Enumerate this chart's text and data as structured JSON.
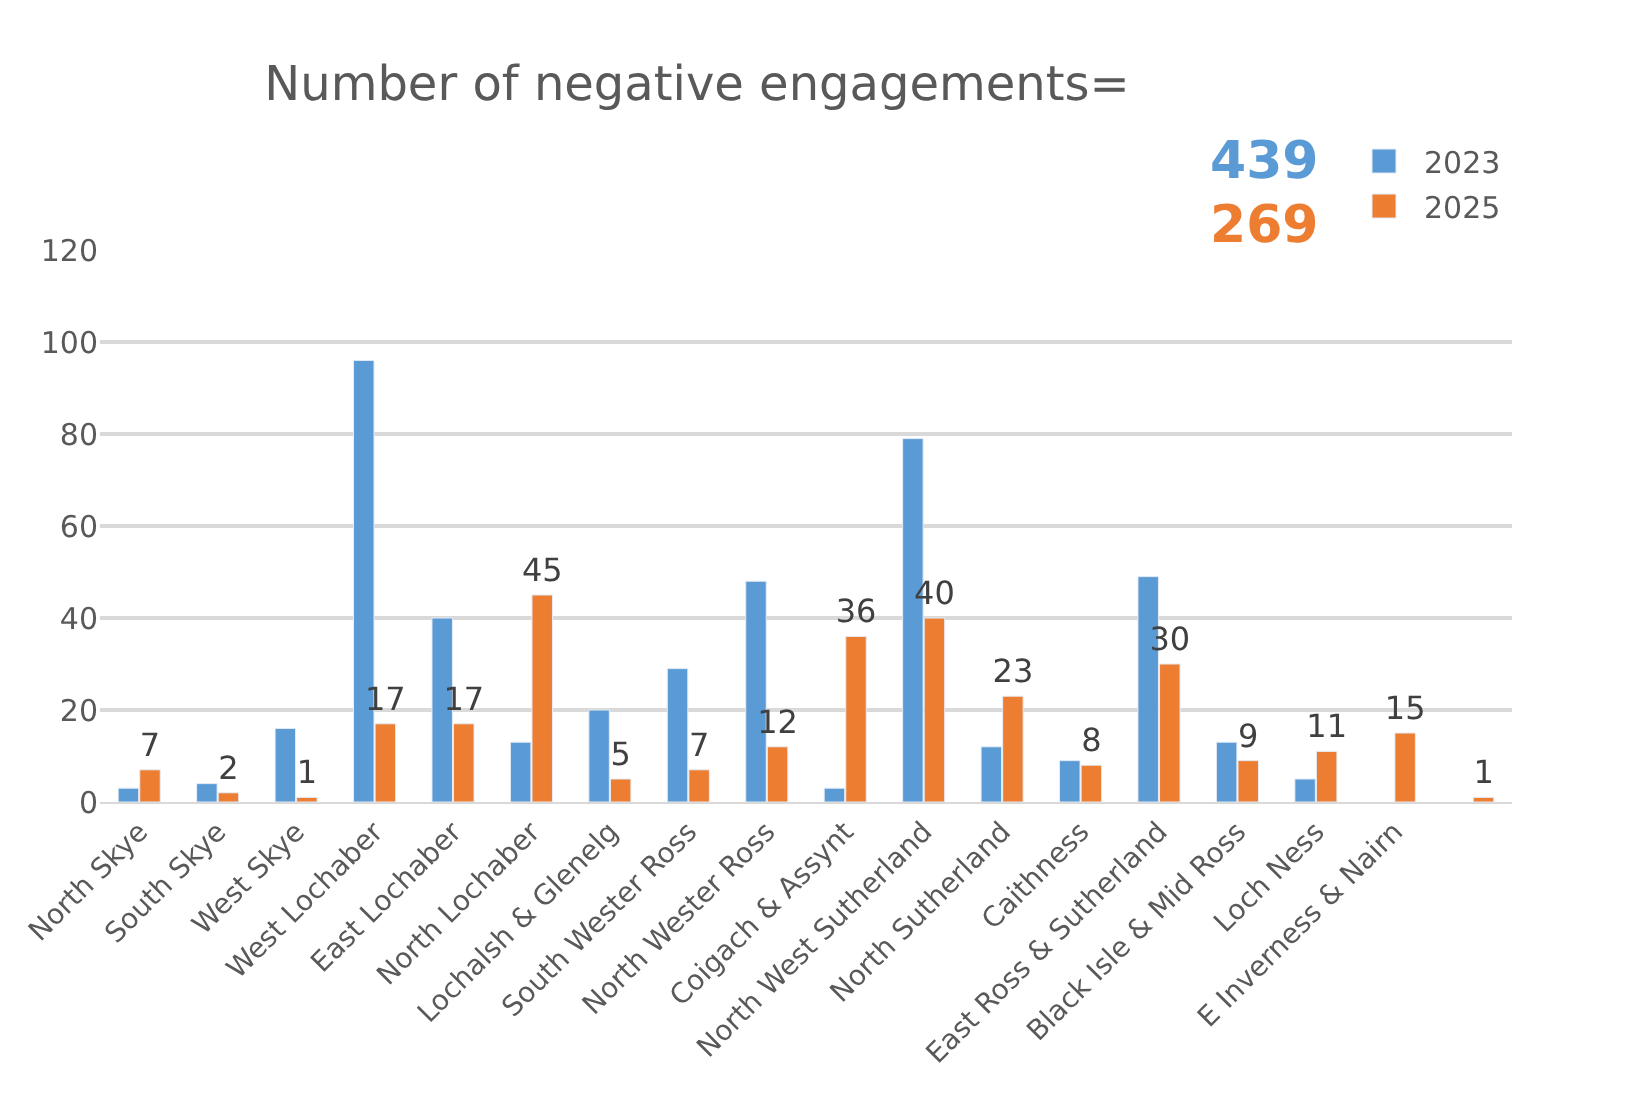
{
  "chart_data": {
    "type": "bar",
    "title": "Number of negative engagements=",
    "categories": [
      "North Skye",
      "South Skye",
      "West Skye",
      "West Lochaber",
      "East Lochaber",
      "North Lochaber",
      "Lochalsh & Glenelg",
      "South Wester Ross",
      "North Wester Ross",
      "Coigach & Assynt",
      "North West Sutherland",
      "North Sutherland",
      "Caithness",
      "East Ross & Sutherland",
      "Black Isle & Mid Ross",
      "Loch Ness",
      "E Inverness & Nairn",
      null
    ],
    "series": [
      {
        "name": "2023",
        "color": "#5b9bd5",
        "values": [
          3,
          4,
          16,
          96,
          40,
          13,
          20,
          29,
          48,
          3,
          79,
          12,
          9,
          49,
          13,
          5,
          null,
          null
        ]
      },
      {
        "name": "2025",
        "color": "#ed7d31",
        "values": [
          7,
          2,
          1,
          17,
          17,
          45,
          5,
          7,
          12,
          36,
          40,
          23,
          8,
          30,
          9,
          11,
          15,
          1
        ],
        "value_labels": [
          "7",
          "2",
          "1",
          "17",
          "17",
          "45",
          "5",
          "7",
          "12",
          "36",
          "40",
          "23",
          "8",
          "30",
          "9",
          "11",
          "15",
          "1"
        ]
      }
    ],
    "annotations": [
      "439",
      "269"
    ],
    "ylim": [
      0,
      120
    ],
    "yticks": [
      0,
      20,
      40,
      60,
      80,
      100,
      120
    ],
    "grid": "y",
    "legend": "top right"
  }
}
